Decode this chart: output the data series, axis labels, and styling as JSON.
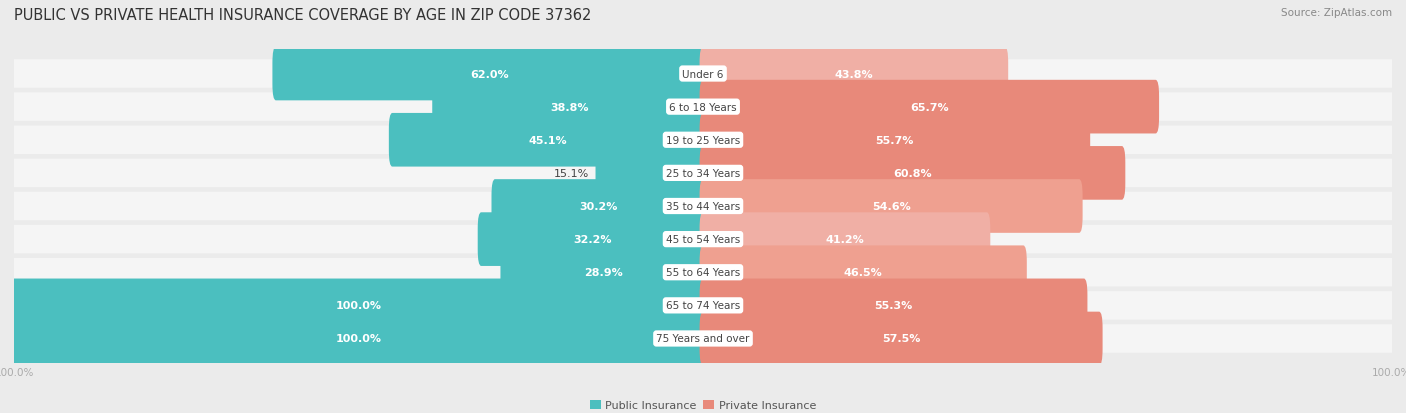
{
  "title": "Public vs Private Health Insurance Coverage by Age in Zip Code 37362",
  "source": "Source: ZipAtlas.com",
  "categories": [
    "Under 6",
    "6 to 18 Years",
    "19 to 25 Years",
    "25 to 34 Years",
    "35 to 44 Years",
    "45 to 54 Years",
    "55 to 64 Years",
    "65 to 74 Years",
    "75 Years and over"
  ],
  "public_values": [
    62.0,
    38.8,
    45.1,
    15.1,
    30.2,
    32.2,
    28.9,
    100.0,
    100.0
  ],
  "private_values": [
    43.8,
    65.7,
    55.7,
    60.8,
    54.6,
    41.2,
    46.5,
    55.3,
    57.5
  ],
  "public_color": "#4BBFBF",
  "private_color": "#E8897A",
  "private_color_light": "#F0AFA5",
  "background_color": "#EBEBEB",
  "row_bg_color": "#F5F5F5",
  "bar_height": 0.62,
  "figsize": [
    14.06,
    4.14
  ],
  "dpi": 100,
  "title_fontsize": 10.5,
  "label_fontsize": 8,
  "category_fontsize": 7.5,
  "legend_fontsize": 8,
  "source_fontsize": 7.5,
  "axis_label_fontsize": 7.5,
  "max_value": 100.0,
  "white_label_threshold_pub": 25,
  "white_label_threshold_priv": 35
}
